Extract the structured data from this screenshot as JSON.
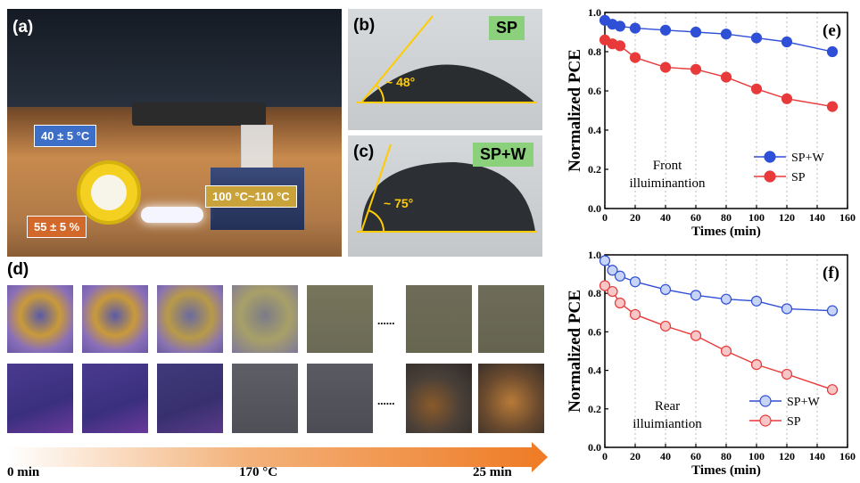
{
  "panel_a": {
    "label": "(a)",
    "callouts": {
      "temp1": "40 ± 5 °C",
      "humidity": "55 ± 5 %",
      "temp2": "100 °C~110 °C"
    }
  },
  "panel_b": {
    "label": "(b)",
    "badge": "SP",
    "angle": "~ 48°"
  },
  "panel_c": {
    "label": "(c)",
    "badge": "SP+W",
    "angle": "~ 75°"
  },
  "panel_d": {
    "label": "(d)",
    "ellipsis_top": "......",
    "ellipsis_bottom": "......",
    "arrow_start": "0 min",
    "arrow_mid": "170 °C",
    "arrow_end": "25 min"
  },
  "colors": {
    "blue": "#2e4fd6",
    "red": "#e83a3a",
    "orange": "#ef7d28",
    "badge_green": "#8bd17c",
    "angle_yellow": "#ffcc00"
  },
  "chart_data": [
    {
      "type": "line",
      "panel": "(e)",
      "annotation": "Front\nilluiminantion",
      "xlabel": "Times (min)",
      "ylabel": "Normalized PCE",
      "xlim": [
        0,
        160
      ],
      "ylim": [
        0.0,
        1.0
      ],
      "xticks": [
        0,
        20,
        40,
        60,
        80,
        100,
        120,
        140,
        160
      ],
      "yticks": [
        0.0,
        0.2,
        0.4,
        0.6,
        0.8,
        1.0
      ],
      "grid": "vertical dotted",
      "legend": "right",
      "marker_style": "filled",
      "series": [
        {
          "name": "SP+W",
          "color": "#2e4fd6",
          "x": [
            0,
            5,
            10,
            20,
            40,
            60,
            80,
            100,
            120,
            150
          ],
          "y": [
            0.96,
            0.94,
            0.93,
            0.92,
            0.91,
            0.9,
            0.89,
            0.87,
            0.85,
            0.8
          ]
        },
        {
          "name": "SP",
          "color": "#e83a3a",
          "x": [
            0,
            5,
            10,
            20,
            40,
            60,
            80,
            100,
            120,
            150
          ],
          "y": [
            0.86,
            0.84,
            0.83,
            0.77,
            0.72,
            0.71,
            0.67,
            0.61,
            0.56,
            0.52
          ]
        }
      ]
    },
    {
      "type": "line",
      "panel": "(f)",
      "annotation": "Rear\nilluimiantion",
      "xlabel": "Times (min)",
      "ylabel": "Normalized PCE",
      "xlim": [
        0,
        160
      ],
      "ylim": [
        0.0,
        1.0
      ],
      "xticks": [
        0,
        20,
        40,
        60,
        80,
        100,
        120,
        140,
        160
      ],
      "yticks": [
        0.0,
        0.2,
        0.4,
        0.6,
        0.8,
        1.0
      ],
      "grid": "vertical dotted",
      "legend": "right",
      "marker_style": "hollow",
      "series": [
        {
          "name": "SP+W",
          "color": "#2e4fd6",
          "x": [
            0,
            5,
            10,
            20,
            40,
            60,
            80,
            100,
            120,
            150
          ],
          "y": [
            0.97,
            0.92,
            0.89,
            0.86,
            0.82,
            0.79,
            0.77,
            0.76,
            0.72,
            0.71
          ]
        },
        {
          "name": "SP",
          "color": "#e83a3a",
          "x": [
            0,
            5,
            10,
            20,
            40,
            60,
            80,
            100,
            120,
            150
          ],
          "y": [
            0.84,
            0.81,
            0.75,
            0.69,
            0.63,
            0.58,
            0.5,
            0.43,
            0.38,
            0.3
          ]
        }
      ]
    }
  ]
}
